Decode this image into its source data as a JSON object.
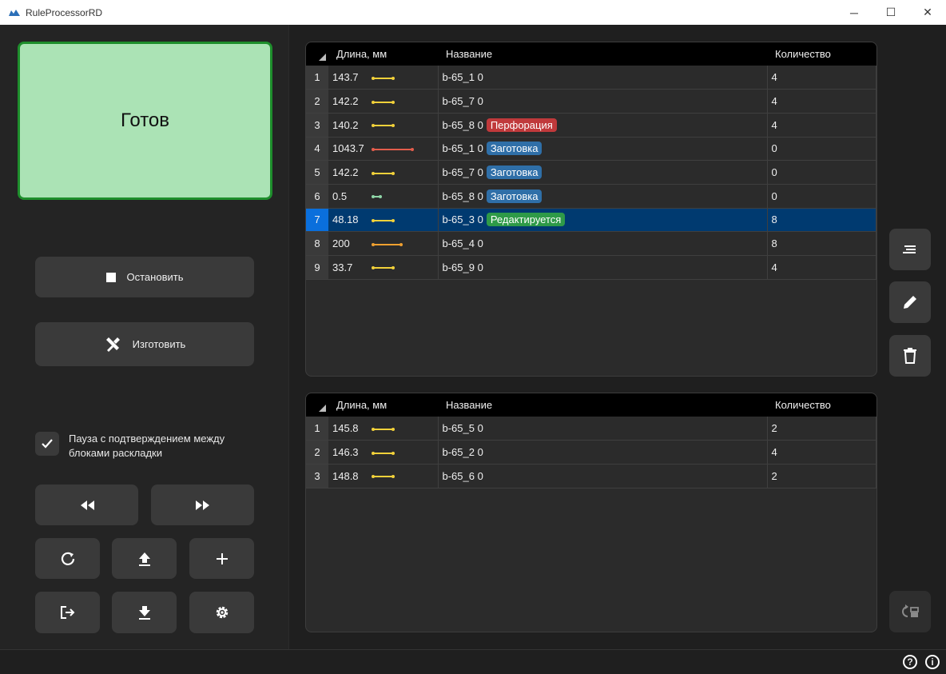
{
  "window": {
    "title": "RuleProcessorRD",
    "minimize": "─",
    "maximize": "☐",
    "close": "✕"
  },
  "status": {
    "text": "Готов",
    "bg_color": "#abe3b5",
    "border_color": "#1e8e2c"
  },
  "actions": {
    "stop_label": "Остановить",
    "make_label": "Изготовить"
  },
  "pause": {
    "label_line1": "Пауза с подтверждением между",
    "label_line2": "блоками раскладки",
    "checked": true
  },
  "icons": {
    "rewind": "rewind-icon",
    "forward": "fast-forward-icon",
    "refresh": "refresh-icon",
    "upload": "upload-icon",
    "add": "plus-icon",
    "exit": "exit-icon",
    "download": "download-icon",
    "settings": "gear-icon",
    "lines": "list-icon",
    "edit": "pencil-icon",
    "delete": "trash-icon",
    "swap": "swap-icon",
    "help": "help-icon",
    "info": "info-icon"
  },
  "table1": {
    "headers": {
      "length": "Длина, мм",
      "name": "Название",
      "qty": "Количество"
    },
    "rows": [
      {
        "num": "1",
        "length": "143.7",
        "name": "b-65_1 0",
        "badge": "",
        "qty": "4"
      },
      {
        "num": "2",
        "length": "142.2",
        "name": "b-65_7 0",
        "badge": "",
        "qty": "4"
      },
      {
        "num": "3",
        "length": "140.2",
        "name": "b-65_8 0",
        "badge": "Перфорация",
        "qty": "4"
      },
      {
        "num": "4",
        "length": "1043.7",
        "name": "b-65_1 0",
        "badge": "Заготовка",
        "qty": "0"
      },
      {
        "num": "5",
        "length": "142.2",
        "name": "b-65_7 0",
        "badge": "Заготовка",
        "qty": "0"
      },
      {
        "num": "6",
        "length": "0.5",
        "name": "b-65_8 0",
        "badge": "Заготовка",
        "qty": "0"
      },
      {
        "num": "7",
        "length": "48.18",
        "name": "b-65_3 0",
        "badge": "Редактируется",
        "qty": "8"
      },
      {
        "num": "8",
        "length": "200",
        "name": "b-65_4 0",
        "badge": "",
        "qty": "8"
      },
      {
        "num": "9",
        "length": "33.7",
        "name": "b-65_9 0",
        "badge": "",
        "qty": "4"
      }
    ]
  },
  "table2": {
    "headers": {
      "length": "Длина, мм",
      "name": "Название",
      "qty": "Количество"
    },
    "rows": [
      {
        "num": "1",
        "length": "145.8",
        "name": "b-65_5 0",
        "qty": "2"
      },
      {
        "num": "2",
        "length": "146.3",
        "name": "b-65_2 0",
        "qty": "4"
      },
      {
        "num": "3",
        "length": "148.8",
        "name": "b-65_6 0",
        "qty": "2"
      }
    ]
  },
  "colors": {
    "badge_perforation": "#c0393b",
    "badge_blank": "#2f6fa8",
    "badge_editing": "#2e9a48",
    "selected_row": "#003a70",
    "seg_yellow": "#f2d13a",
    "seg_red": "#e35d4c",
    "seg_green": "#8fd6a8",
    "seg_orange": "#f0a030"
  }
}
